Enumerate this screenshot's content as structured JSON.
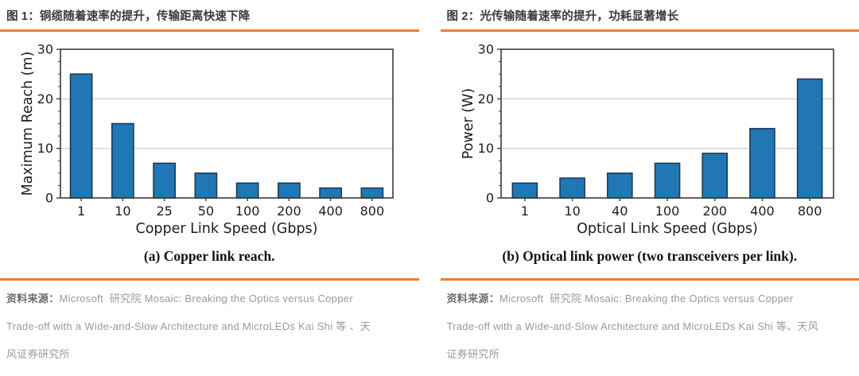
{
  "colors": {
    "accent": "#ED7D31",
    "bar_fill": "#2077B4",
    "bar_edge": "#1F3B57",
    "frame": "#3a3a3a",
    "grid": "#cbcbcb",
    "chart_text": "#1d1d1d"
  },
  "left_panel": {
    "title": "图 1：铜缆随着速率的提升，传输距离快速下降",
    "caption": "(a) Copper link reach.",
    "source_label": "资料来源：",
    "source_line1": "Microsoft  研究院 Mosaic: Breaking the Optics versus Copper",
    "source_line2": "Trade-off with a Wide-and-Slow Architecture and MicroLEDs Kai Shi 等 、天",
    "source_line3": "风证券研究所"
  },
  "right_panel": {
    "title": "图 2：光传输随着速率的提升，功耗显著增长",
    "caption": "(b) Optical link power (two transceivers per link).",
    "source_label": "资料来源：",
    "source_line1": "Microsoft  研究院 Mosaic: Breaking the Optics versus Copper",
    "source_line2": "Trade-off with a Wide-and-Slow Architecture and MicroLEDs Kai Shi 等、天风",
    "source_line3": "证券研究所"
  },
  "chart_data": [
    {
      "type": "bar",
      "categories": [
        "1",
        "10",
        "25",
        "50",
        "100",
        "200",
        "400",
        "800"
      ],
      "values": [
        25,
        15,
        7,
        5,
        3,
        3,
        2,
        2
      ],
      "title": "",
      "xlabel": "Copper Link Speed (Gbps)",
      "ylabel": "Maximum Reach (m)",
      "ylim": [
        0,
        30
      ],
      "yticks": [
        0,
        10,
        20,
        30
      ],
      "grid": true,
      "legend_position": "none"
    },
    {
      "type": "bar",
      "categories": [
        "1",
        "10",
        "40",
        "100",
        "200",
        "400",
        "800"
      ],
      "values": [
        3,
        4,
        5,
        7,
        9,
        14,
        24
      ],
      "title": "",
      "xlabel": "Optical Link Speed (Gbps)",
      "ylabel": "Power (W)",
      "ylim": [
        0,
        30
      ],
      "yticks": [
        0,
        10,
        20,
        30
      ],
      "grid": true,
      "legend_position": "none"
    }
  ]
}
